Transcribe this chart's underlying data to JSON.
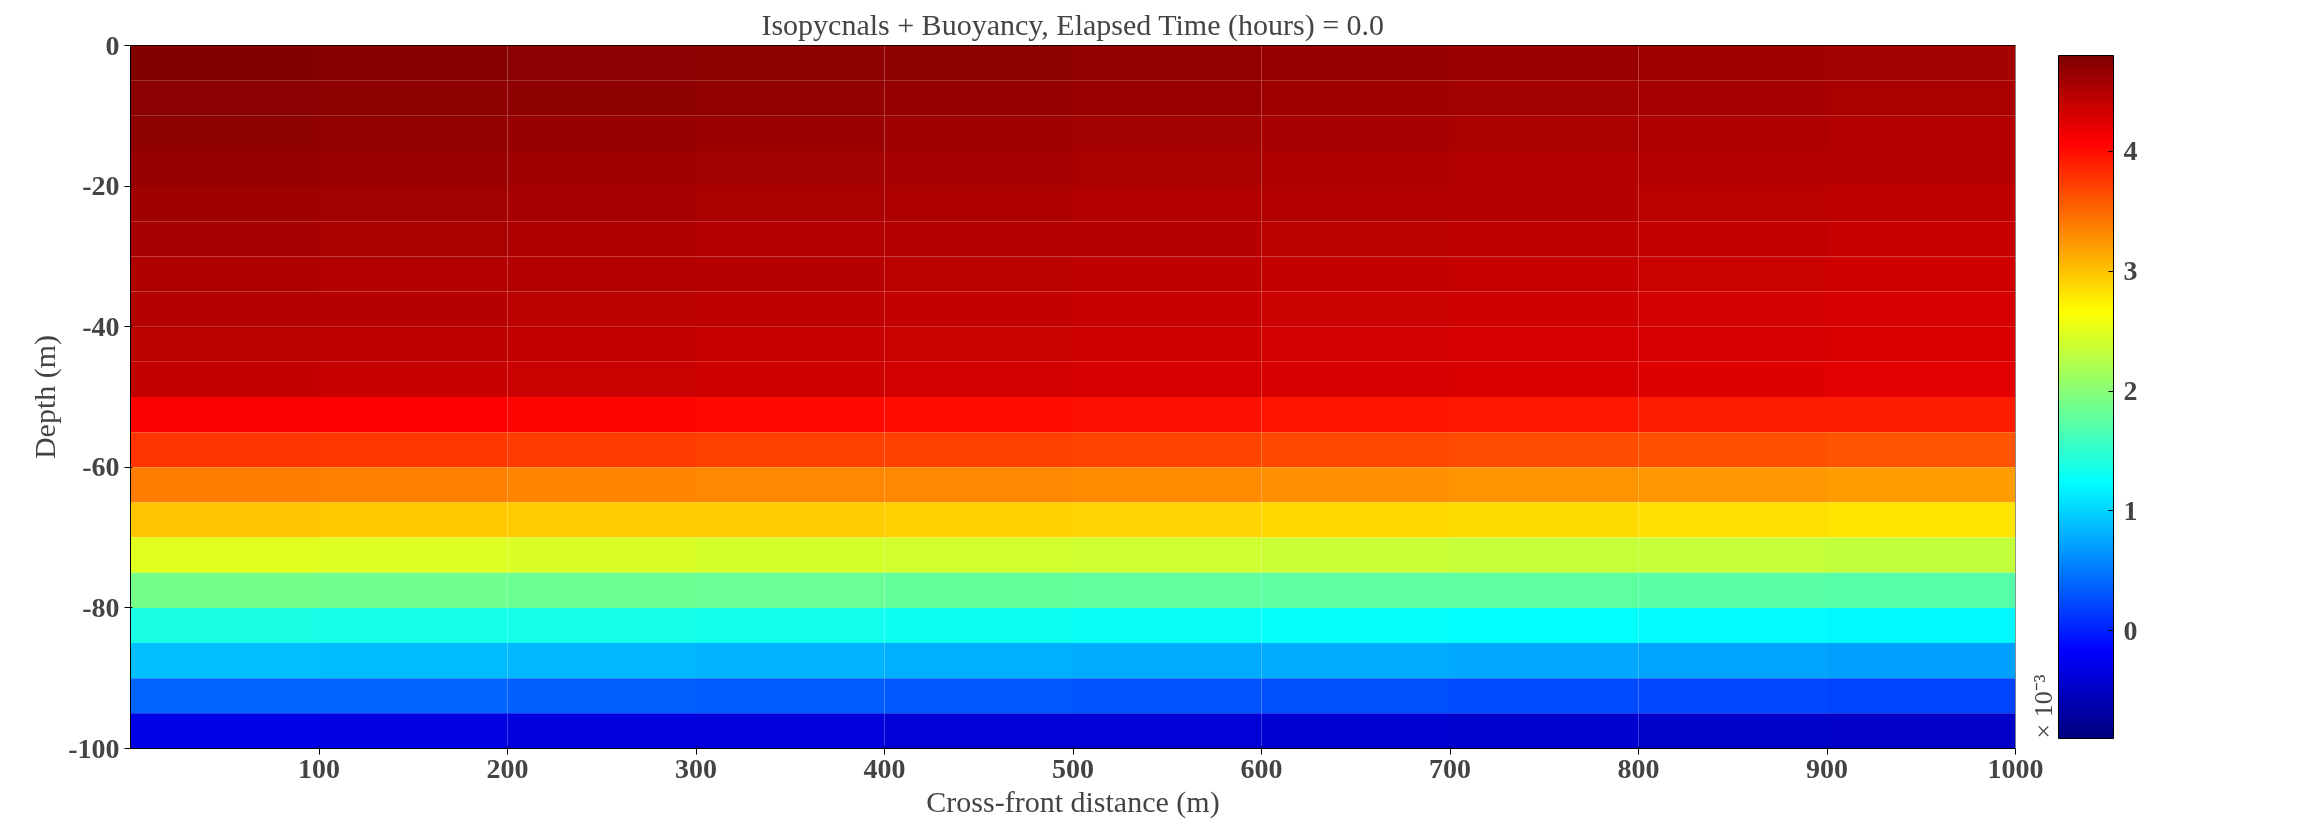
{
  "chart_data": {
    "type": "heatmap",
    "title": "Isopycnals + Buoyancy, Elapsed Time (hours) = 0.0",
    "xlabel": "Cross-front distance (m)",
    "ylabel": "Depth (m)",
    "clabel": "× 10⁻³",
    "xlim": [
      0,
      1000
    ],
    "xticks": [
      100,
      200,
      300,
      400,
      500,
      600,
      700,
      800,
      900,
      1000
    ],
    "ylim": [
      -100,
      0
    ],
    "yticks": [
      -100,
      -80,
      -60,
      -40,
      -20,
      0
    ],
    "clim": [
      -0.9,
      4.8
    ],
    "cticks": [
      0,
      1,
      2,
      3,
      4
    ],
    "grid": false,
    "cells": [
      [
        4.77,
        4.75,
        4.73,
        4.71,
        4.69,
        4.67,
        4.65,
        4.63,
        4.61,
        4.59
      ],
      [
        4.73,
        4.71,
        4.69,
        4.67,
        4.65,
        4.63,
        4.61,
        4.59,
        4.57,
        4.55
      ],
      [
        4.69,
        4.67,
        4.65,
        4.63,
        4.61,
        4.59,
        4.57,
        4.55,
        4.53,
        4.51
      ],
      [
        4.65,
        4.63,
        4.61,
        4.59,
        4.57,
        4.55,
        4.53,
        4.51,
        4.49,
        4.47
      ],
      [
        4.61,
        4.59,
        4.57,
        4.55,
        4.53,
        4.51,
        4.49,
        4.47,
        4.45,
        4.43
      ],
      [
        4.57,
        4.55,
        4.53,
        4.51,
        4.49,
        4.47,
        4.45,
        4.43,
        4.41,
        4.39
      ],
      [
        4.53,
        4.51,
        4.49,
        4.47,
        4.45,
        4.43,
        4.41,
        4.39,
        4.37,
        4.35
      ],
      [
        4.49,
        4.47,
        4.45,
        4.43,
        4.41,
        4.39,
        4.37,
        4.35,
        4.33,
        4.31
      ],
      [
        4.45,
        4.43,
        4.41,
        4.39,
        4.37,
        4.35,
        4.33,
        4.31,
        4.29,
        4.27
      ],
      [
        4.41,
        4.39,
        4.37,
        4.35,
        4.33,
        4.31,
        4.29,
        4.27,
        4.25,
        4.23
      ],
      [
        4.09,
        4.07,
        4.05,
        4.03,
        4.01,
        3.99,
        3.97,
        3.95,
        3.93,
        3.91
      ],
      [
        3.79,
        3.77,
        3.75,
        3.73,
        3.71,
        3.69,
        3.67,
        3.65,
        3.63,
        3.61
      ],
      [
        3.39,
        3.37,
        3.35,
        3.33,
        3.31,
        3.29,
        3.27,
        3.25,
        3.23,
        3.21
      ],
      [
        2.99,
        2.97,
        2.95,
        2.93,
        2.91,
        2.89,
        2.87,
        2.85,
        2.83,
        2.81
      ],
      [
        2.49,
        2.47,
        2.45,
        2.43,
        2.41,
        2.39,
        2.37,
        2.35,
        2.33,
        2.31
      ],
      [
        1.89,
        1.87,
        1.85,
        1.83,
        1.81,
        1.79,
        1.77,
        1.75,
        1.73,
        1.71
      ],
      [
        1.39,
        1.37,
        1.35,
        1.33,
        1.31,
        1.29,
        1.27,
        1.25,
        1.23,
        1.21
      ],
      [
        0.89,
        0.87,
        0.85,
        0.83,
        0.81,
        0.79,
        0.77,
        0.75,
        0.73,
        0.71
      ],
      [
        0.39,
        0.37,
        0.35,
        0.33,
        0.31,
        0.29,
        0.27,
        0.25,
        0.23,
        0.21
      ],
      [
        -0.31,
        -0.33,
        -0.35,
        -0.37,
        -0.39,
        -0.41,
        -0.43,
        -0.45,
        -0.47,
        -0.49
      ]
    ]
  }
}
